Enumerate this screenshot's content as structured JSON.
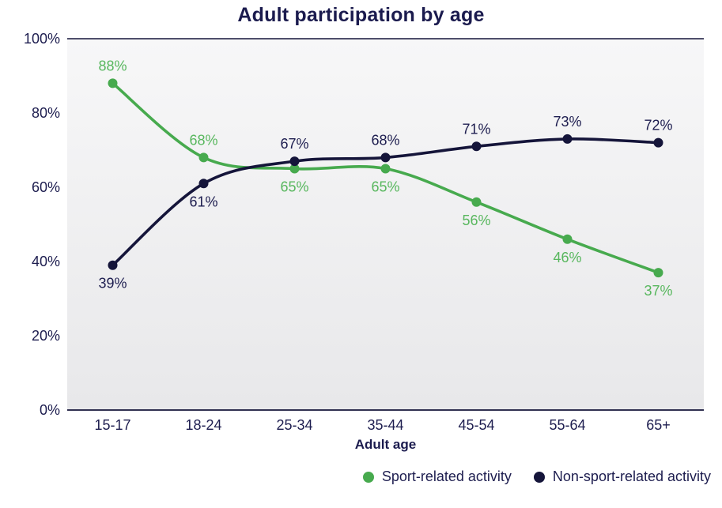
{
  "title": "Adult participation by age",
  "chart_data": {
    "type": "line",
    "title": "Adult participation by age",
    "categories": [
      "15-17",
      "18-24",
      "25-34",
      "35-44",
      "45-54",
      "55-64",
      "65+"
    ],
    "series": [
      {
        "name": "Sport-related activity",
        "color": "#47aa4e",
        "label_color": "#58b75e",
        "values": [
          88,
          68,
          65,
          65,
          56,
          46,
          37
        ],
        "labels": [
          "88%",
          "68%",
          "65%",
          "65%",
          "56%",
          "46%",
          "37%"
        ],
        "label_positions": [
          "above",
          "above",
          "below",
          "below",
          "below",
          "below",
          "below"
        ]
      },
      {
        "name": "Non-sport-related activity",
        "color": "#15153a",
        "label_color": "#1d1d4f",
        "values": [
          39,
          61,
          67,
          68,
          71,
          73,
          72
        ],
        "labels": [
          "39%",
          "61%",
          "67%",
          "68%",
          "71%",
          "73%",
          "72%"
        ],
        "label_positions": [
          "below",
          "below",
          "above",
          "above",
          "above",
          "above",
          "above"
        ]
      }
    ],
    "xlabel": "Adult age",
    "ylabel": "",
    "ylim": [
      0,
      100
    ],
    "ytick_values": [
      0,
      20,
      40,
      60,
      80,
      100
    ],
    "ytick_labels": [
      "0%",
      "20%",
      "40%",
      "60%",
      "80%",
      "100%"
    ],
    "grid": false,
    "legend_position": "bottom-right",
    "value_suffix": "%"
  },
  "colors": {
    "background": "#ffffff",
    "plot_bg_top": "#f7f7f8",
    "plot_bg_bottom": "#e8e8ea",
    "axis_line": "#15153a",
    "tick_text": "#1d1d4f"
  }
}
